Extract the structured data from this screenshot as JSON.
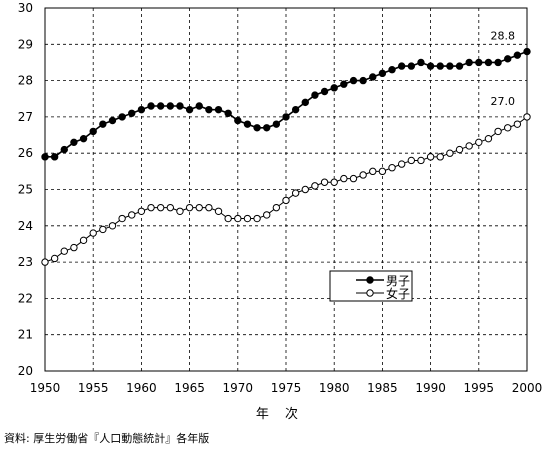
{
  "chart_data": {
    "type": "line",
    "x": [
      1950,
      1951,
      1952,
      1953,
      1954,
      1955,
      1956,
      1957,
      1958,
      1959,
      1960,
      1961,
      1962,
      1963,
      1964,
      1965,
      1966,
      1967,
      1968,
      1969,
      1970,
      1971,
      1972,
      1973,
      1974,
      1975,
      1976,
      1977,
      1978,
      1979,
      1980,
      1981,
      1982,
      1983,
      1984,
      1985,
      1986,
      1987,
      1988,
      1989,
      1990,
      1991,
      1992,
      1993,
      1994,
      1995,
      1996,
      1997,
      1998,
      1999,
      2000
    ],
    "series": [
      {
        "name": "男子",
        "marker": "filled-circle",
        "values": [
          25.9,
          25.9,
          26.1,
          26.3,
          26.4,
          26.6,
          26.8,
          26.9,
          27.0,
          27.1,
          27.2,
          27.3,
          27.3,
          27.3,
          27.3,
          27.2,
          27.3,
          27.2,
          27.2,
          27.1,
          26.9,
          26.8,
          26.7,
          26.7,
          26.8,
          27.0,
          27.2,
          27.4,
          27.6,
          27.7,
          27.8,
          27.9,
          28.0,
          28.0,
          28.1,
          28.2,
          28.3,
          28.4,
          28.4,
          28.5,
          28.4,
          28.4,
          28.4,
          28.4,
          28.5,
          28.5,
          28.5,
          28.5,
          28.6,
          28.7,
          28.8
        ]
      },
      {
        "name": "女子",
        "marker": "open-circle",
        "values": [
          23.0,
          23.1,
          23.3,
          23.4,
          23.6,
          23.8,
          23.9,
          24.0,
          24.2,
          24.3,
          24.4,
          24.5,
          24.5,
          24.5,
          24.4,
          24.5,
          24.5,
          24.5,
          24.4,
          24.2,
          24.2,
          24.2,
          24.2,
          24.3,
          24.5,
          24.7,
          24.9,
          25.0,
          25.1,
          25.2,
          25.2,
          25.3,
          25.3,
          25.4,
          25.5,
          25.5,
          25.6,
          25.7,
          25.8,
          25.8,
          25.9,
          25.9,
          26.0,
          26.1,
          26.2,
          26.3,
          26.4,
          26.6,
          26.7,
          26.8,
          27.0
        ]
      }
    ],
    "ylim": [
      20,
      30
    ],
    "yticks": [
      "20",
      "21",
      "22",
      "23",
      "24",
      "25",
      "26",
      "27",
      "28",
      "29",
      "30"
    ],
    "xlim": [
      1950,
      2000
    ],
    "xticks": [
      "1950",
      "1955",
      "1960",
      "1965",
      "1970",
      "1975",
      "1980",
      "1985",
      "1990",
      "1995",
      "2000"
    ],
    "xlabel": "年 次",
    "ylabel": "",
    "title": "",
    "annotations": [
      "28.8",
      "27.0"
    ],
    "grid": "dashed",
    "legend": "lower-right"
  },
  "source_note": "資料: 厚生労働省『人口動態統計』各年版"
}
